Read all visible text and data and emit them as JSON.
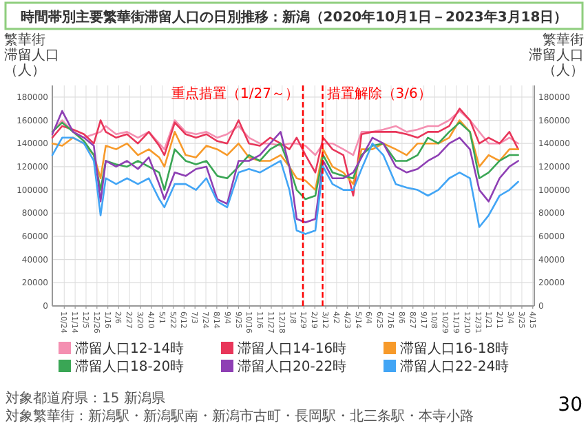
{
  "chart_data": {
    "type": "line",
    "title": "時間帯別主要繁華街滞留人口の日別推移：新潟（2020年10月1日－2023年3月18日）",
    "ylabel": "繁華街滞留人口（人）",
    "y2label": "繁華街滞留人口（人）",
    "legend": "bottom",
    "grid": true,
    "annotations": [
      "対象都道府県：15 新潟県",
      "対象繁華街：新潟駅・新潟駅南・新潟市古町・長岡駅・北三条駅・本寺小路",
      "30"
    ],
    "ref_lines": [
      {
        "axis": "x",
        "value": "2022-01-27",
        "label": "重点措置（1/27～）",
        "color": "#ff0000",
        "line_style": "dashed"
      },
      {
        "axis": "x",
        "value": "2022-03-06",
        "label": "措置解除（3/6）",
        "color": "#ff0000",
        "line_style": "dashed"
      }
    ],
    "xlim": [
      "2020-10-01",
      "2023-04-18"
    ],
    "xticks": [
      {
        "value": "2020-10-24",
        "label": "10/24"
      },
      {
        "value": "2020-11-14",
        "label": "11/14"
      },
      {
        "value": "2020-12-05",
        "label": "12/5"
      },
      {
        "value": "2020-12-26",
        "label": "12/26"
      },
      {
        "value": "2021-01-16",
        "label": "1/16"
      },
      {
        "value": "2021-02-06",
        "label": "2/6"
      },
      {
        "value": "2021-02-27",
        "label": "2/27"
      },
      {
        "value": "2021-03-20",
        "label": "3/20"
      },
      {
        "value": "2021-04-10",
        "label": "4/10"
      },
      {
        "value": "2021-05-01",
        "label": "5/1"
      },
      {
        "value": "2021-05-22",
        "label": "5/22"
      },
      {
        "value": "2021-06-12",
        "label": "6/12"
      },
      {
        "value": "2021-07-03",
        "label": "7/3"
      },
      {
        "value": "2021-07-24",
        "label": "7/24"
      },
      {
        "value": "2021-08-14",
        "label": "8/14"
      },
      {
        "value": "2021-09-04",
        "label": "9/4"
      },
      {
        "value": "2021-09-25",
        "label": "9/25"
      },
      {
        "value": "2021-10-16",
        "label": "10/16"
      },
      {
        "value": "2021-11-06",
        "label": "11/6"
      },
      {
        "value": "2021-11-27",
        "label": "11/27"
      },
      {
        "value": "2021-12-18",
        "label": "12/18"
      },
      {
        "value": "2022-01-08",
        "label": "1/8"
      },
      {
        "value": "2022-01-29",
        "label": "1/29"
      },
      {
        "value": "2022-02-19",
        "label": "2/19"
      },
      {
        "value": "2022-03-12",
        "label": "3/12"
      },
      {
        "value": "2022-04-02",
        "label": "4/2"
      },
      {
        "value": "2022-04-23",
        "label": "4/23"
      },
      {
        "value": "2022-05-14",
        "label": "5/14"
      },
      {
        "value": "2022-06-04",
        "label": "6/4"
      },
      {
        "value": "2022-06-25",
        "label": "6/25"
      },
      {
        "value": "2022-07-16",
        "label": "7/16"
      },
      {
        "value": "2022-08-06",
        "label": "8/6"
      },
      {
        "value": "2022-08-27",
        "label": "8/27"
      },
      {
        "value": "2022-09-17",
        "label": "9/17"
      },
      {
        "value": "2022-10-08",
        "label": "10/8"
      },
      {
        "value": "2022-10-29",
        "label": "10/29"
      },
      {
        "value": "2022-11-19",
        "label": "11/19"
      },
      {
        "value": "2022-12-10",
        "label": "12/10"
      },
      {
        "value": "2022-12-31",
        "label": "12/31"
      },
      {
        "value": "2023-01-21",
        "label": "1/21"
      },
      {
        "value": "2023-02-11",
        "label": "2/11"
      },
      {
        "value": "2023-03-04",
        "label": "3/4"
      },
      {
        "value": "2023-03-25",
        "label": "3/25"
      },
      {
        "value": "2023-04-15",
        "label": "4/15"
      }
    ],
    "ylim": [
      0,
      190000
    ],
    "yticks": [
      0,
      20000,
      40000,
      60000,
      80000,
      100000,
      120000,
      140000,
      160000,
      180000
    ],
    "y2lim": [
      0,
      190000
    ],
    "y2ticks": [
      0,
      20000,
      40000,
      60000,
      80000,
      100000,
      120000,
      140000,
      160000,
      180000
    ],
    "x": [
      "2020-10-01",
      "2020-10-20",
      "2020-11-10",
      "2020-12-01",
      "2020-12-20",
      "2021-01-02",
      "2021-01-12",
      "2021-02-01",
      "2021-02-22",
      "2021-03-15",
      "2021-04-05",
      "2021-04-25",
      "2021-05-05",
      "2021-05-25",
      "2021-06-15",
      "2021-07-05",
      "2021-07-25",
      "2021-08-15",
      "2021-09-03",
      "2021-09-25",
      "2021-10-15",
      "2021-11-05",
      "2021-11-25",
      "2021-12-15",
      "2022-01-01",
      "2022-01-15",
      "2022-02-01",
      "2022-02-20",
      "2022-03-07",
      "2022-03-25",
      "2022-04-15",
      "2022-05-04",
      "2022-05-20",
      "2022-06-10",
      "2022-07-01",
      "2022-07-25",
      "2022-08-15",
      "2022-09-05",
      "2022-09-25",
      "2022-10-15",
      "2022-11-05",
      "2022-11-25",
      "2022-12-15",
      "2023-01-02",
      "2023-01-20",
      "2023-02-10",
      "2023-03-01",
      "2023-03-18"
    ],
    "series": [
      {
        "name": "滞留人口12-14時",
        "color": "#f48fb1",
        "values": [
          150000,
          160000,
          150000,
          145000,
          148000,
          150000,
          155000,
          148000,
          150000,
          145000,
          150000,
          140000,
          135000,
          160000,
          150000,
          148000,
          150000,
          145000,
          148000,
          155000,
          145000,
          140000,
          140000,
          138000,
          140000,
          140000,
          138000,
          130000,
          140000,
          140000,
          135000,
          130000,
          150000,
          150000,
          152000,
          155000,
          150000,
          152000,
          155000,
          155000,
          160000,
          168000,
          160000,
          150000,
          140000,
          140000,
          145000,
          140000
        ]
      },
      {
        "name": "滞留人口14-16時",
        "color": "#e8365a",
        "values": [
          145000,
          155000,
          152000,
          148000,
          140000,
          160000,
          150000,
          145000,
          148000,
          140000,
          150000,
          138000,
          130000,
          158000,
          148000,
          145000,
          148000,
          142000,
          140000,
          160000,
          140000,
          138000,
          145000,
          140000,
          135000,
          145000,
          130000,
          115000,
          145000,
          135000,
          130000,
          95000,
          148000,
          150000,
          150000,
          150000,
          148000,
          145000,
          150000,
          150000,
          155000,
          170000,
          160000,
          140000,
          145000,
          140000,
          150000,
          135000
        ]
      },
      {
        "name": "滞留人口16-18時",
        "color": "#f79a2a",
        "values": [
          140000,
          138000,
          145000,
          140000,
          130000,
          110000,
          138000,
          135000,
          140000,
          130000,
          135000,
          128000,
          120000,
          150000,
          130000,
          128000,
          138000,
          135000,
          130000,
          140000,
          128000,
          125000,
          125000,
          130000,
          120000,
          110000,
          108000,
          100000,
          135000,
          120000,
          115000,
          105000,
          135000,
          135000,
          140000,
          135000,
          130000,
          140000,
          140000,
          140000,
          145000,
          160000,
          150000,
          120000,
          130000,
          125000,
          135000,
          135000
        ]
      },
      {
        "name": "滞留人口18-20時",
        "color": "#3aa655",
        "values": [
          150000,
          158000,
          150000,
          142000,
          130000,
          100000,
          125000,
          122000,
          120000,
          125000,
          120000,
          115000,
          100000,
          135000,
          125000,
          122000,
          125000,
          112000,
          110000,
          120000,
          130000,
          125000,
          135000,
          140000,
          120000,
          100000,
          92000,
          95000,
          130000,
          115000,
          112000,
          110000,
          130000,
          138000,
          140000,
          125000,
          125000,
          130000,
          145000,
          140000,
          150000,
          158000,
          150000,
          110000,
          115000,
          125000,
          130000,
          130000
        ]
      },
      {
        "name": "滞留人口20-22時",
        "color": "#8e3fb4",
        "values": [
          148000,
          168000,
          150000,
          145000,
          138000,
          90000,
          125000,
          120000,
          125000,
          118000,
          128000,
          105000,
          92000,
          115000,
          112000,
          118000,
          120000,
          92000,
          88000,
          125000,
          125000,
          130000,
          140000,
          150000,
          120000,
          75000,
          72000,
          75000,
          125000,
          110000,
          110000,
          115000,
          128000,
          145000,
          140000,
          120000,
          115000,
          118000,
          125000,
          130000,
          140000,
          145000,
          135000,
          100000,
          90000,
          110000,
          120000,
          125000
        ]
      },
      {
        "name": "滞留人口22-24時",
        "color": "#42a5f5",
        "values": [
          130000,
          145000,
          145000,
          140000,
          125000,
          78000,
          110000,
          105000,
          110000,
          105000,
          110000,
          92000,
          85000,
          105000,
          105000,
          100000,
          110000,
          90000,
          85000,
          115000,
          118000,
          115000,
          120000,
          125000,
          100000,
          65000,
          62000,
          65000,
          120000,
          105000,
          100000,
          100000,
          118000,
          140000,
          130000,
          105000,
          102000,
          100000,
          95000,
          100000,
          110000,
          115000,
          110000,
          68000,
          78000,
          95000,
          100000,
          107000
        ]
      }
    ]
  }
}
